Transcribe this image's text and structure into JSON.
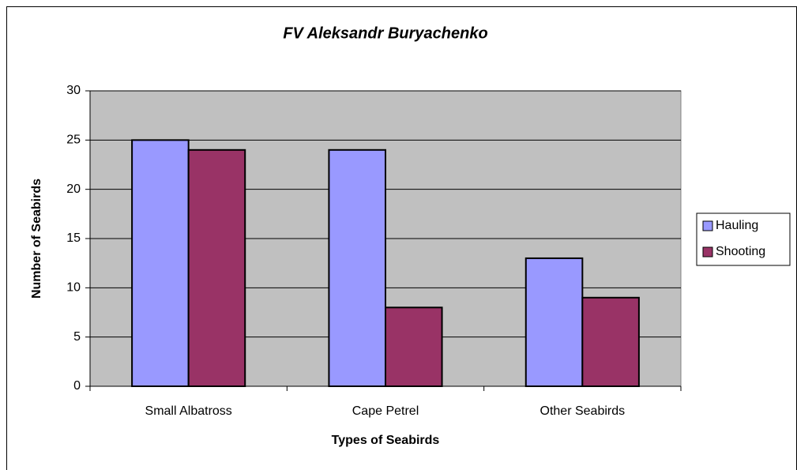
{
  "chart_data": {
    "type": "bar",
    "title": "FV Aleksandr Buryachenko",
    "xlabel": "Types of Seabirds",
    "ylabel": "Number of Seabirds",
    "categories": [
      "Small Albatross",
      "Cape Petrel",
      "Other Seabirds"
    ],
    "series": [
      {
        "name": "Hauling",
        "color": "#9999ff",
        "values": [
          25,
          24,
          13
        ]
      },
      {
        "name": "Shooting",
        "color": "#993366",
        "values": [
          24,
          8,
          9
        ]
      }
    ],
    "ylim": [
      0,
      30
    ],
    "yticks": [
      0,
      5,
      10,
      15,
      20,
      25,
      30
    ],
    "grid": true,
    "legend": "right"
  }
}
